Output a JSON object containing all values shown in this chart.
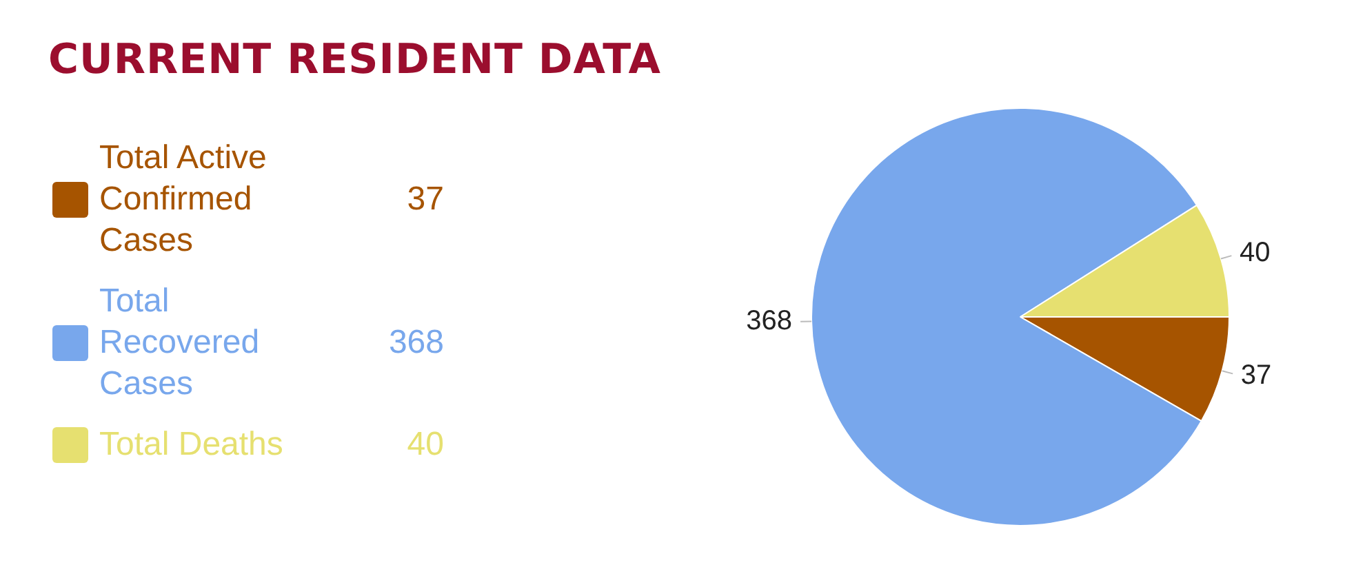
{
  "chart_data": {
    "type": "pie",
    "title": "CURRENT RESIDENT DATA",
    "categories": [
      "Total Active Confirmed Cases",
      "Total Recovered Cases",
      "Total Deaths"
    ],
    "values": [
      37,
      368,
      40
    ],
    "colors": [
      "#a65400",
      "#78a7ec",
      "#e6e070"
    ],
    "value_labels": [
      "37",
      "368",
      "40"
    ],
    "legend": "left"
  }
}
